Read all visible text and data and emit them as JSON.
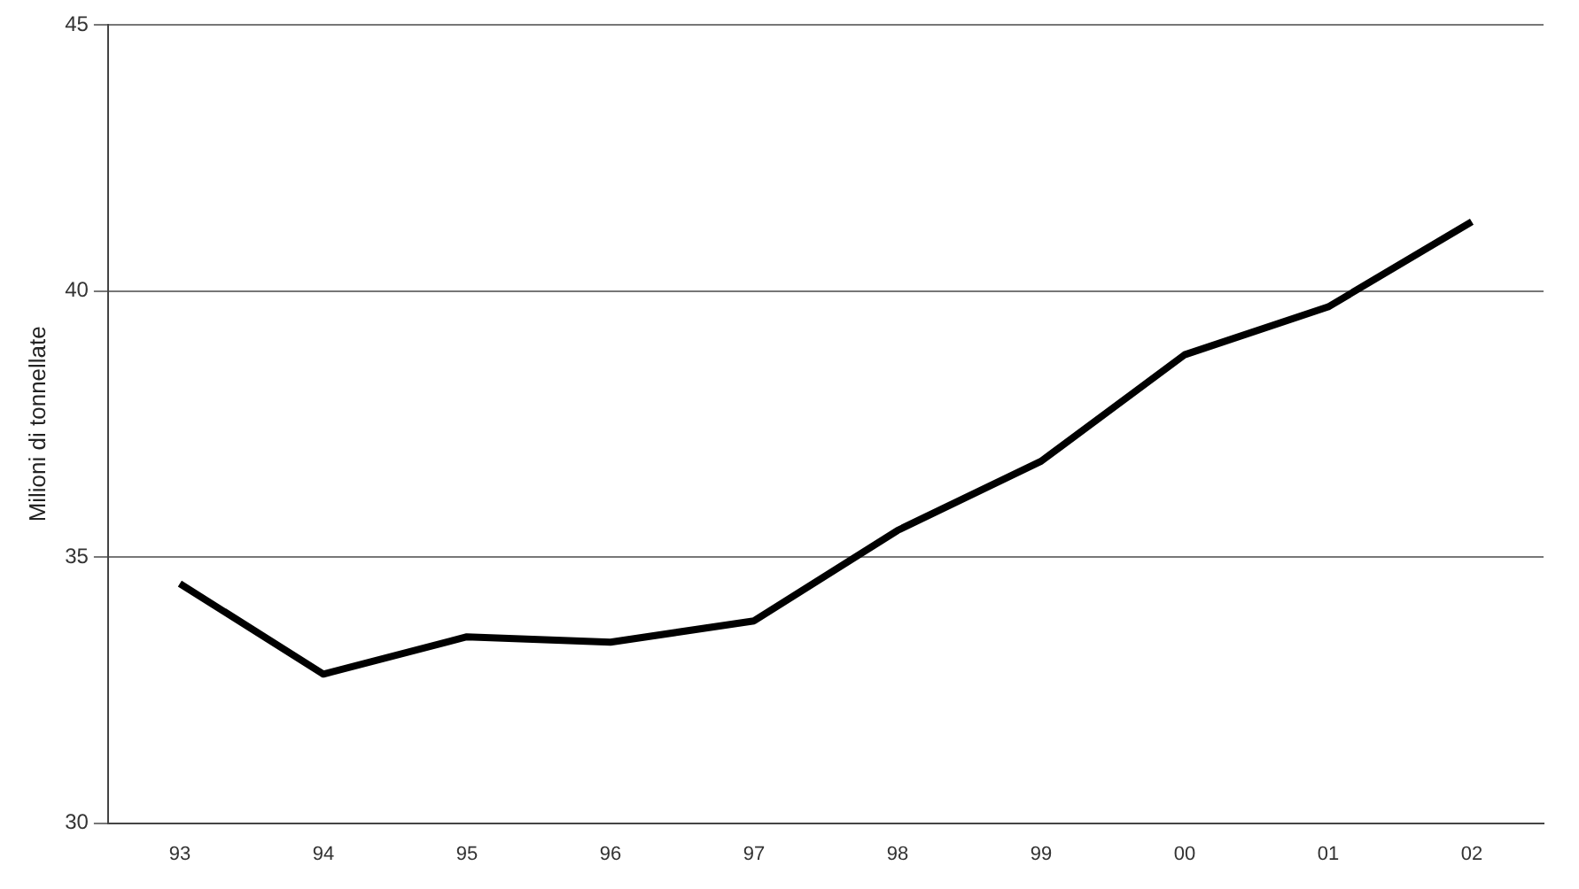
{
  "chart_data": {
    "type": "line",
    "ylabel": "Milioni di tonnellate",
    "categories": [
      "93",
      "94",
      "95",
      "96",
      "97",
      "98",
      "99",
      "00",
      "01",
      "02"
    ],
    "series": [
      {
        "color": "#000000",
        "values": [
          34.5,
          32.8,
          33.5,
          33.4,
          33.8,
          35.5,
          36.8,
          38.8,
          39.7,
          41.3
        ]
      }
    ],
    "ylim": [
      30,
      45
    ],
    "yticks": [
      30,
      35,
      40,
      45
    ],
    "grid": "y",
    "marker": "none"
  }
}
